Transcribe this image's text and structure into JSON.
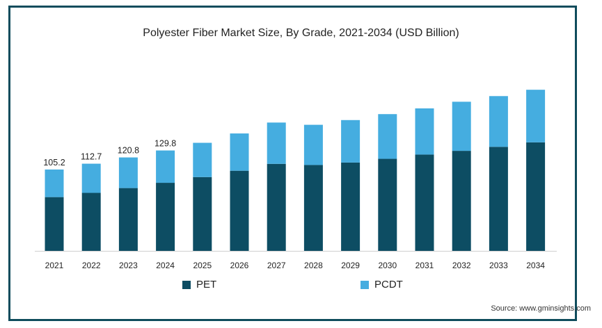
{
  "chart_data": {
    "type": "bar",
    "stacked": true,
    "title": "Polyester Fiber Market Size, By Grade, 2021-2034 (USD Billion)",
    "categories": [
      "2021",
      "2022",
      "2023",
      "2024",
      "2025",
      "2026",
      "2027",
      "2028",
      "2029",
      "2030",
      "2031",
      "2032",
      "2033",
      "2034"
    ],
    "series": [
      {
        "name": "PET",
        "color": "#0d4d63",
        "values": [
          69.5,
          75.0,
          81.2,
          88.0,
          95.4,
          103.6,
          112.5,
          111.0,
          114.2,
          119.0,
          124.5,
          129.3,
          134.5,
          140.3
        ]
      },
      {
        "name": "PCDT",
        "color": "#45ade0",
        "values": [
          35.7,
          37.7,
          39.6,
          41.8,
          44.3,
          48.2,
          53.4,
          52.0,
          54.9,
          57.8,
          59.7,
          63.5,
          65.6,
          68.0
        ]
      }
    ],
    "total_labels": [
      "105.2",
      "112.7",
      "120.8",
      "129.8"
    ],
    "ylim": [
      0,
      230
    ],
    "grid": false,
    "legend_position": "bottom"
  },
  "source": "Source: www.gminsights.com"
}
